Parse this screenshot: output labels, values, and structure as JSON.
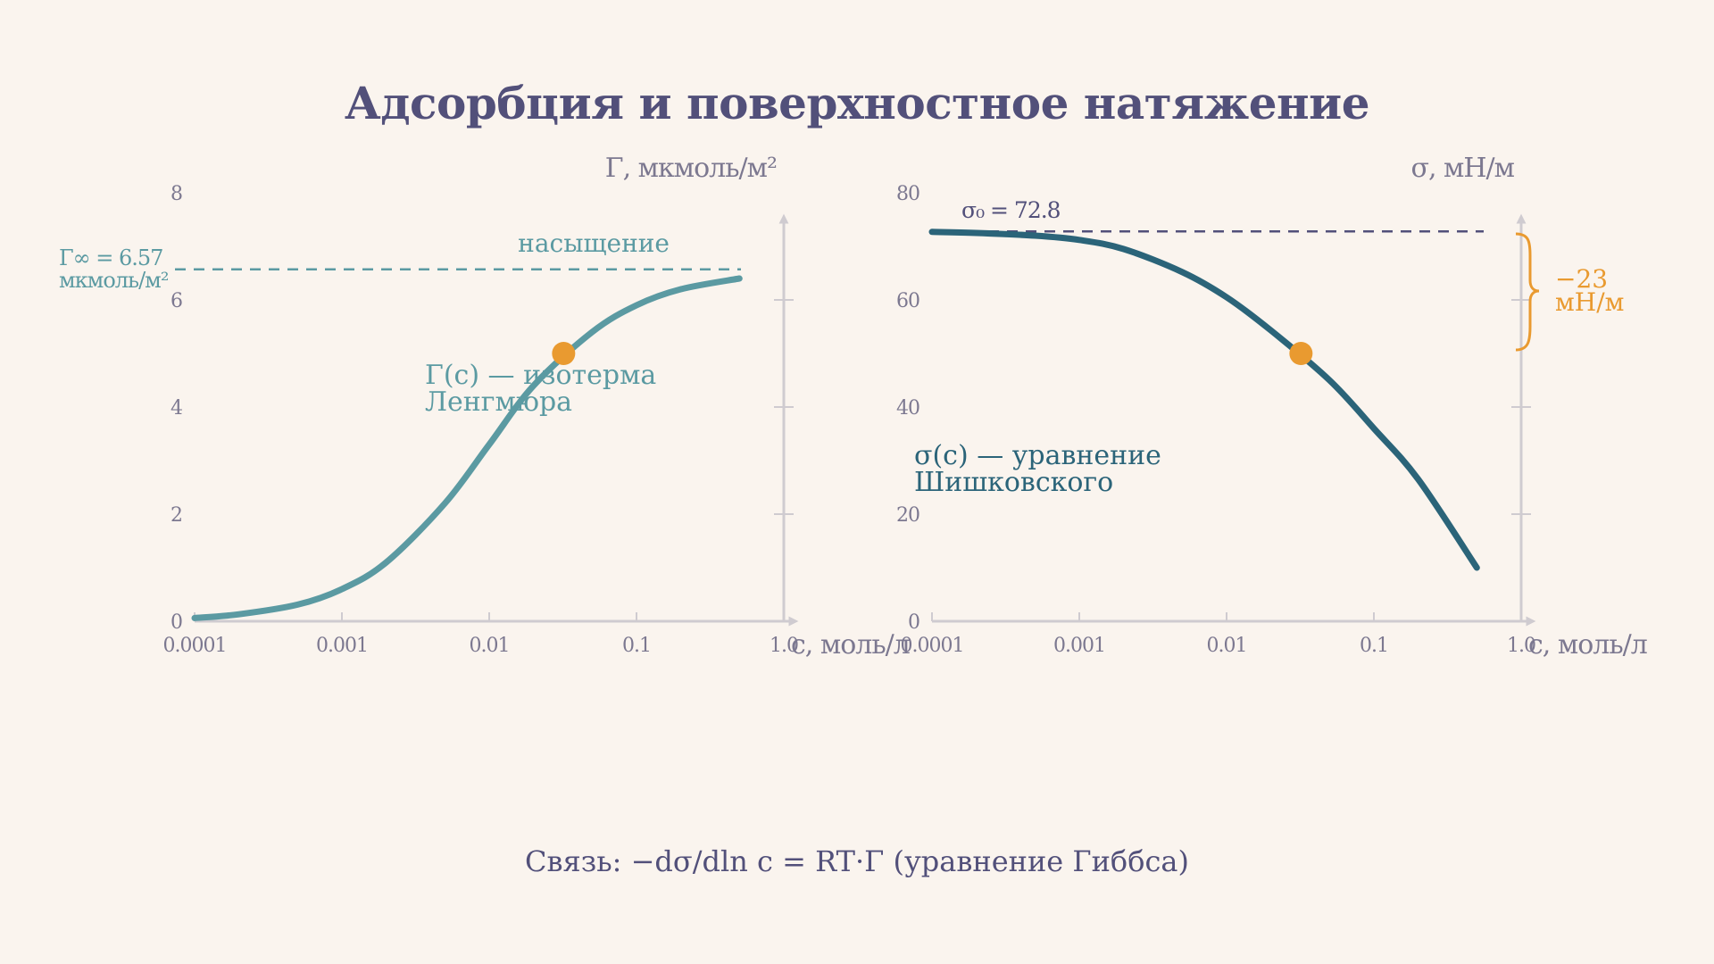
{
  "title": "Адсорбция и поверхностное натяжение",
  "footer": "Связь: −dσ/dln c = RT·Γ (уравнение Гиббса)",
  "colors": {
    "background": "#faf4ee",
    "title": "#52507a",
    "axis": "#cfcbd0",
    "left_curve": "#5b9aa2",
    "right_curve": "#2b6479",
    "highlight": "#e99a30"
  },
  "chart_data": [
    {
      "type": "line",
      "xscale": "log",
      "xlim": [
        0.0001,
        1.0
      ],
      "ylim": [
        0,
        8
      ],
      "x_ticks": [
        "0.0001",
        "0.001",
        "0.01",
        "0.1",
        "1.0"
      ],
      "y_ticks": [
        "0",
        "2",
        "4",
        "6",
        "8"
      ],
      "xlabel": "c, моль/л",
      "ylabel": "Γ, мкмоль/м²",
      "series": [
        {
          "name": "Γ(c) — изотерма Ленгмюра",
          "x": [
            0.0001,
            0.0002,
            0.0005,
            0.001,
            0.002,
            0.005,
            0.01,
            0.02,
            0.05,
            0.1,
            0.2,
            0.5
          ],
          "y": [
            0.06,
            0.13,
            0.31,
            0.6,
            1.1,
            2.2,
            3.3,
            4.4,
            5.4,
            5.9,
            6.2,
            6.4
          ]
        }
      ],
      "reference_line": {
        "value": 6.57,
        "label_line1": "Γ∞ = 6.57",
        "label_line2": "мкмоль/м²"
      },
      "annotations": {
        "saturation": "насыщение",
        "curve_label_line1": "Γ(c) — изотерма",
        "curve_label_line2": "Ленгмюра"
      },
      "highlight_point": {
        "x": 0.032,
        "y": 5.0
      }
    },
    {
      "type": "line",
      "xscale": "log",
      "xlim": [
        0.0001,
        1.0
      ],
      "ylim": [
        0,
        80
      ],
      "x_ticks": [
        "0.0001",
        "0.001",
        "0.01",
        "0.1",
        "1.0"
      ],
      "y_ticks": [
        "0",
        "20",
        "40",
        "60",
        "80"
      ],
      "xlabel": "c, моль/л",
      "ylabel": "σ, мН/м",
      "series": [
        {
          "name": "σ(c) — уравнение Шишковского",
          "x": [
            0.0001,
            0.0002,
            0.0005,
            0.001,
            0.002,
            0.005,
            0.01,
            0.02,
            0.05,
            0.1,
            0.2,
            0.5
          ],
          "y": [
            72.7,
            72.5,
            72.0,
            71.2,
            69.5,
            65.2,
            60.5,
            54.3,
            45.0,
            36.0,
            26.5,
            10.0
          ]
        }
      ],
      "reference_line": {
        "value": 72.8,
        "label": "σ₀ = 72.8"
      },
      "annotations": {
        "curve_label_line1": "σ(c) — уравнение",
        "curve_label_line2": "Шишковского",
        "drop_line1": "−23",
        "drop_line2": "мН/м"
      },
      "highlight_point": {
        "x": 0.032,
        "y": 50.0
      }
    }
  ]
}
